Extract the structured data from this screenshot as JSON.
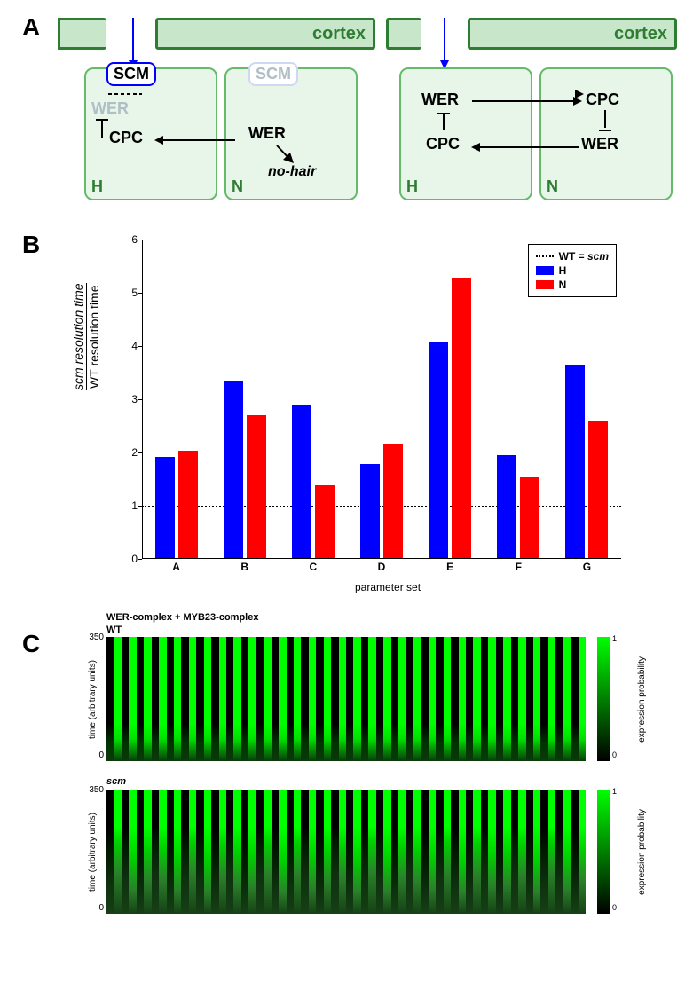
{
  "panelA": {
    "label": "A",
    "cortex_label": "cortex",
    "cortex_color": "#c8e6c9",
    "cortex_border": "#2e7d32",
    "cell_bg": "#e8f5e9",
    "cell_border": "#66bb6a",
    "left": {
      "H_label": "H",
      "N_label": "N",
      "scm_active": {
        "text": "SCM",
        "border": "#0000ff",
        "color": "#000000"
      },
      "scm_inactive": {
        "text": "SCM",
        "border": "#cfd8f3",
        "color": "#b0bec5"
      },
      "wer_gray": {
        "text": "WER",
        "color": "#b0bec5"
      },
      "cpc": "CPC",
      "wer_black": "WER",
      "nohair": "no-hair",
      "arrow_color": "#0000ff"
    },
    "right": {
      "H_label": "H",
      "N_label": "N",
      "wer": "WER",
      "cpc": "CPC",
      "arrow_color": "#0000ff"
    }
  },
  "panelB": {
    "label": "B",
    "type": "bar",
    "ylabel_top": "scm resolution time",
    "ylabel_bottom": "WT resolution time",
    "xlabel": "parameter set",
    "categories": [
      "A",
      "B",
      "C",
      "D",
      "E",
      "F",
      "G"
    ],
    "H_values": [
      1.9,
      3.33,
      2.88,
      1.76,
      4.07,
      1.93,
      3.62
    ],
    "N_values": [
      2.01,
      2.69,
      1.36,
      2.13,
      5.26,
      1.51,
      2.57
    ],
    "ylim": [
      0,
      6
    ],
    "ytick_step": 1,
    "wt_line": 1.0,
    "legend": {
      "wt": "WT = scm",
      "H": "H",
      "N": "N"
    },
    "colors": {
      "H": "#0000ff",
      "N": "#ff0000"
    },
    "background": "#ffffff"
  },
  "panelC": {
    "label": "C",
    "main_title": "WER-complex + MYB23-complex",
    "sub_wt": "WT",
    "sub_scm": "scm",
    "ylabel": "time (arbitrary units)",
    "ymax": 350,
    "colorbar_label": "expression probability",
    "cb_min": 0,
    "cb_max": 1,
    "gradient_low": "#000000",
    "gradient_high": "#00ff00",
    "n_cols": 64,
    "wt_pattern": "alternating_high",
    "scm_pattern": "alternating_low"
  }
}
